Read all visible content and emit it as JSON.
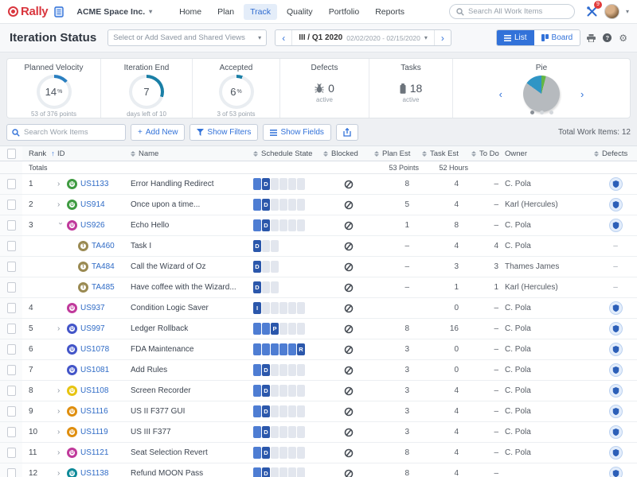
{
  "topbar": {
    "logo_text": "Rally",
    "workspace": "ACME Space Inc.",
    "nav_items": [
      "Home",
      "Plan",
      "Track",
      "Quality",
      "Portfolio",
      "Reports"
    ],
    "active_nav": "Track",
    "search_placeholder": "Search All Work Items",
    "notification_count": "9"
  },
  "viewbar": {
    "title": "Iteration Status",
    "views_placeholder": "Select or Add Saved and Shared Views",
    "iteration_label": "III / Q1 2020",
    "iteration_dates": "02/02/2020 - 02/15/2020",
    "list_label": "List",
    "board_label": "Board",
    "icons": [
      "print-icon",
      "help-icon",
      "gear-icon"
    ]
  },
  "cards": {
    "velocity": {
      "title": "Planned Velocity",
      "value": "14",
      "unit": "%",
      "subtitle": "53 of 376 points",
      "percent": 14,
      "color": "#2a7fc0"
    },
    "iteration_end": {
      "title": "Iteration End",
      "value": "7",
      "subtitle": "days left of 10",
      "percent": 30,
      "color": "#1a7fa6"
    },
    "accepted": {
      "title": "Accepted",
      "value": "6",
      "unit": "%",
      "subtitle": "3 of 53 points",
      "percent": 6,
      "color": "#1a7fa6"
    },
    "defects": {
      "title": "Defects",
      "value": "0",
      "subtitle": "active",
      "icon": "bug-icon"
    },
    "tasks": {
      "title": "Tasks",
      "value": "18",
      "subtitle": "active",
      "icon": "battery-icon"
    },
    "pie": {
      "title": "Pie",
      "dots": 3,
      "active_dot": 0
    }
  },
  "toolbar": {
    "search_placeholder": "Search Work Items",
    "add_new": "Add New",
    "show_filters": "Show Filters",
    "show_fields": "Show Fields",
    "total": "Total Work Items: 12"
  },
  "table": {
    "columns": [
      "Rank",
      "ID",
      "Name",
      "Schedule State",
      "Blocked",
      "Plan Est",
      "Task Est",
      "To Do",
      "Owner",
      "Defects"
    ],
    "totals_label": "Totals",
    "totals_plan": "53 Points",
    "totals_task": "52 Hours",
    "icons": {
      "blocked": "slashed-circle-icon",
      "defects": "shield-icon"
    },
    "rows": [
      {
        "rank": "1",
        "expand": "collapsed",
        "kind": "story",
        "icon_color": "#3f9b41",
        "id": "US1133",
        "name": "Error Handling Redirect",
        "state_letter": "D",
        "state_index": 1,
        "state_total": 6,
        "plan": "8",
        "task": "4",
        "todo": "–",
        "owner": "C. Pola",
        "defects": "shield"
      },
      {
        "rank": "2",
        "expand": "collapsed",
        "kind": "story",
        "icon_color": "#3f9b41",
        "id": "US914",
        "name": "Once upon a time...",
        "state_letter": "D",
        "state_index": 1,
        "state_total": 6,
        "plan": "5",
        "task": "4",
        "todo": "–",
        "owner": "Karl (Hercules)",
        "defects": "shield"
      },
      {
        "rank": "3",
        "expand": "expanded",
        "kind": "story",
        "icon_color": "#c0399b",
        "id": "US926",
        "name": "Echo Hello",
        "state_letter": "D",
        "state_index": 1,
        "state_total": 6,
        "plan": "1",
        "task": "8",
        "todo": "–",
        "owner": "C. Pola",
        "defects": "shield"
      },
      {
        "rank": "",
        "expand": null,
        "kind": "task",
        "icon_color": "#9a8a52",
        "id": "TA460",
        "name": "Task I",
        "state_letter": "D",
        "state_index": 0,
        "state_total": 3,
        "plan": "–",
        "task": "4",
        "todo": "4",
        "owner": "C. Pola",
        "defects": "–"
      },
      {
        "rank": "",
        "expand": null,
        "kind": "task",
        "icon_color": "#9a8a52",
        "id": "TA484",
        "name": "Call the Wizard of Oz",
        "state_letter": "D",
        "state_index": 0,
        "state_total": 3,
        "plan": "–",
        "task": "3",
        "todo": "3",
        "owner": "Thames James",
        "defects": "–"
      },
      {
        "rank": "",
        "expand": null,
        "kind": "task",
        "icon_color": "#9a8a52",
        "id": "TA485",
        "name": "Have coffee with the Wizard...",
        "state_letter": "D",
        "state_index": 0,
        "state_total": 3,
        "plan": "–",
        "task": "1",
        "todo": "1",
        "owner": "Karl (Hercules)",
        "defects": "–"
      },
      {
        "rank": "4",
        "expand": null,
        "kind": "story",
        "icon_color": "#c0399b",
        "id": "US937",
        "name": "Condition Logic Saver",
        "state_letter": "I",
        "state_index": 0,
        "state_total": 6,
        "plan": "",
        "task": "0",
        "todo": "–",
        "owner": "C. Pola",
        "defects": "shield"
      },
      {
        "rank": "5",
        "expand": "collapsed",
        "kind": "story",
        "icon_color": "#4355c8",
        "id": "US997",
        "name": "Ledger Rollback",
        "state_letter": "P",
        "state_index": 2,
        "state_total": 6,
        "plan": "8",
        "task": "16",
        "todo": "–",
        "owner": "C. Pola",
        "defects": "shield"
      },
      {
        "rank": "6",
        "expand": null,
        "kind": "story",
        "icon_color": "#4355c8",
        "id": "US1078",
        "name": "FDA Maintenance",
        "state_letter": "R",
        "state_index": 5,
        "state_total": 6,
        "plan": "3",
        "task": "0",
        "todo": "–",
        "owner": "C. Pola",
        "defects": "shield"
      },
      {
        "rank": "7",
        "expand": null,
        "kind": "story",
        "icon_color": "#4355c8",
        "id": "US1081",
        "name": "Add Rules",
        "state_letter": "D",
        "state_index": 1,
        "state_total": 6,
        "plan": "3",
        "task": "0",
        "todo": "–",
        "owner": "C. Pola",
        "defects": "shield"
      },
      {
        "rank": "8",
        "expand": "collapsed",
        "kind": "story",
        "icon_color": "#e7c411",
        "id": "US1108",
        "name": "Screen Recorder",
        "state_letter": "D",
        "state_index": 1,
        "state_total": 6,
        "plan": "3",
        "task": "4",
        "todo": "–",
        "owner": "C. Pola",
        "defects": "shield"
      },
      {
        "rank": "9",
        "expand": "collapsed",
        "kind": "story",
        "icon_color": "#df8e0e",
        "id": "US1116",
        "name": "US II F377 GUI",
        "state_letter": "D",
        "state_index": 1,
        "state_total": 6,
        "plan": "3",
        "task": "4",
        "todo": "–",
        "owner": "C. Pola",
        "defects": "shield"
      },
      {
        "rank": "10",
        "expand": "collapsed",
        "kind": "story",
        "icon_color": "#df8e0e",
        "id": "US1119",
        "name": "US III F377",
        "state_letter": "D",
        "state_index": 1,
        "state_total": 6,
        "plan": "3",
        "task": "4",
        "todo": "–",
        "owner": "C. Pola",
        "defects": "shield"
      },
      {
        "rank": "11",
        "expand": "collapsed",
        "kind": "story",
        "icon_color": "#c0399b",
        "id": "US1121",
        "name": "Seat Selection Revert",
        "state_letter": "D",
        "state_index": 1,
        "state_total": 6,
        "plan": "8",
        "task": "4",
        "todo": "–",
        "owner": "C. Pola",
        "defects": "shield"
      },
      {
        "rank": "12",
        "expand": "collapsed",
        "kind": "story",
        "icon_color": "#0e8a99",
        "id": "US1138",
        "name": "Refund MOON Pass",
        "state_letter": "D",
        "state_index": 1,
        "state_total": 6,
        "plan": "8",
        "task": "4",
        "todo": "–",
        "owner": "",
        "defects": "shield"
      }
    ]
  },
  "chart_data": [
    {
      "type": "pie",
      "title": "Pie",
      "slices": [
        {
          "label": "slice-green",
          "value": 4,
          "color": "#62b645"
        },
        {
          "label": "slice-gray",
          "value": 81,
          "color": "#b6babe"
        },
        {
          "label": "slice-blue",
          "value": 15,
          "color": "#2f95c5"
        }
      ],
      "legend": false
    },
    {
      "type": "donut",
      "title": "Planned Velocity",
      "value": 14,
      "max": 100,
      "label": "14%",
      "subtitle": "53 of 376 points",
      "color": "#2a7fc0"
    },
    {
      "type": "donut",
      "title": "Iteration End",
      "value": 30,
      "max": 100,
      "label": "7",
      "subtitle": "days left of 10",
      "color": "#1a7fa6"
    },
    {
      "type": "donut",
      "title": "Accepted",
      "value": 6,
      "max": 100,
      "label": "6%",
      "subtitle": "3 of 53 points",
      "color": "#1a7fa6"
    }
  ]
}
